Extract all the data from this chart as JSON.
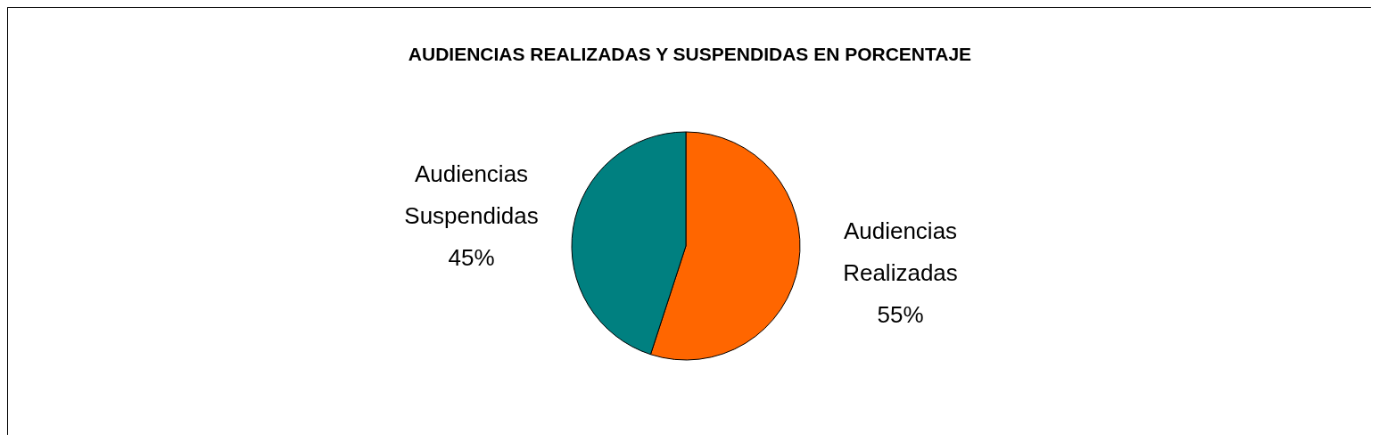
{
  "chart_data": {
    "type": "pie",
    "title": "AUDIENCIAS REALIZADAS Y SUSPENDIDAS EN PORCENTAJE",
    "categories": [
      "Audiencias Realizadas",
      "Audiencias Suspendidas"
    ],
    "values": [
      55,
      45
    ],
    "colors": [
      "#ff6600",
      "#008080"
    ],
    "value_labels": [
      "55%",
      "45%"
    ]
  }
}
